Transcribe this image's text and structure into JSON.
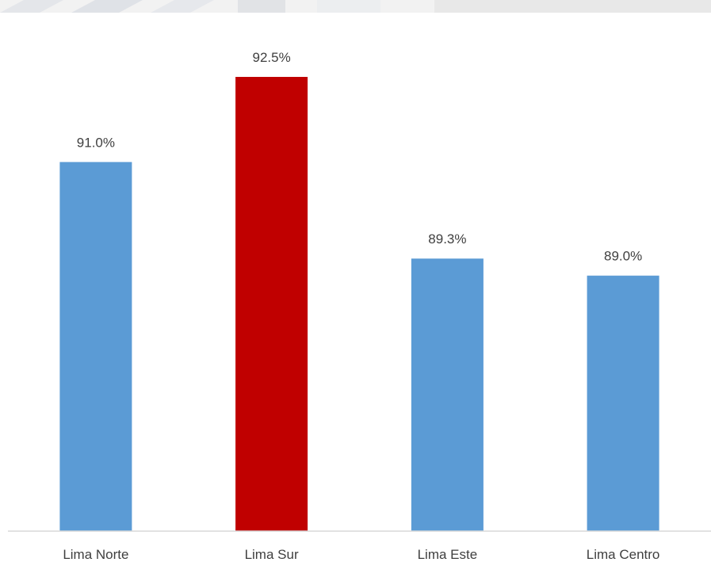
{
  "chart_data": {
    "type": "bar",
    "categories": [
      "Lima Norte",
      "Lima Sur",
      "Lima Este",
      "Lima Centro"
    ],
    "values": [
      91.0,
      92.5,
      89.3,
      89.0
    ],
    "data_labels": [
      "91.0%",
      "92.5%",
      "89.3%",
      "89.0%"
    ],
    "title": "",
    "xlabel": "",
    "ylabel": "",
    "ylim": [
      84.5,
      92.5
    ],
    "grid": false,
    "legend": "none",
    "colors": [
      "#5b9bd5",
      "#c00000",
      "#5b9bd5",
      "#5b9bd5"
    ],
    "axis_color": "#d9d9d9",
    "text_color": "#3f3f3f"
  }
}
